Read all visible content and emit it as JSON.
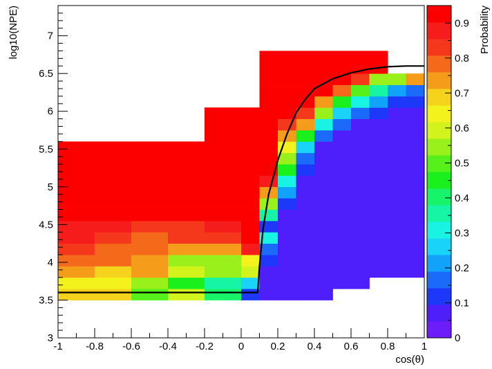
{
  "chart_data": {
    "type": "heatmap",
    "xlabel": "cos(θ)",
    "ylabel": "log10(NPE)",
    "colorbar_label": "Probability",
    "xlim": [
      -1,
      1
    ],
    "ylim": [
      3,
      7.4
    ],
    "zlim": [
      0,
      0.95
    ],
    "grid": false,
    "x_ticks": [
      "-1",
      "-0.8",
      "-0.6",
      "-0.4",
      "-0.2",
      "0",
      "0.2",
      "0.4",
      "0.6",
      "0.8",
      "1"
    ],
    "y_ticks": [
      "3",
      "3.5",
      "4",
      "4.5",
      "5",
      "5.5",
      "6",
      "6.5",
      "7"
    ],
    "colorbar_ticks": [
      "0",
      "0.1",
      "0.2",
      "0.3",
      "0.4",
      "0.5",
      "0.6",
      "0.7",
      "0.8",
      "0.9"
    ],
    "bin_edges_x": [
      -1.0,
      -0.8,
      -0.6,
      -0.4,
      -0.2,
      0.0,
      0.1,
      0.2,
      0.3,
      0.4,
      0.5,
      0.6,
      0.7,
      0.8,
      0.9,
      1.0
    ],
    "bin_edges_y": [
      3.5,
      3.65,
      3.8,
      3.95,
      4.1,
      4.25,
      4.4,
      4.55,
      4.7,
      4.85,
      5.0,
      5.15,
      5.3,
      5.45,
      5.6,
      5.75,
      5.9,
      6.05,
      6.2,
      6.35,
      6.5,
      6.65,
      6.8
    ],
    "z": [
      [
        0.7,
        0.7,
        0.5,
        0.6,
        0.4,
        0.1,
        0.05,
        0.05,
        0.05,
        0.05,
        null,
        null,
        null,
        null,
        null
      ],
      [
        0.65,
        0.65,
        0.55,
        0.45,
        0.35,
        0.25,
        0.05,
        0.05,
        0.05,
        0.05,
        0.05,
        0.05,
        null,
        null,
        null
      ],
      [
        0.75,
        0.7,
        0.75,
        0.6,
        0.55,
        0.6,
        0.05,
        0.05,
        0.05,
        0.05,
        0.05,
        0.05,
        0.05,
        0.05,
        0.05
      ],
      [
        0.8,
        0.8,
        0.75,
        0.55,
        0.55,
        0.65,
        0.1,
        0.05,
        0.05,
        0.05,
        0.05,
        0.05,
        0.05,
        0.05,
        0.05
      ],
      [
        0.85,
        0.8,
        0.8,
        0.72,
        0.72,
        0.9,
        0.15,
        0.05,
        0.05,
        0.05,
        0.05,
        0.05,
        0.05,
        0.05,
        0.05
      ],
      [
        0.88,
        0.85,
        0.8,
        0.82,
        0.85,
        0.92,
        0.3,
        0.05,
        0.05,
        0.05,
        0.05,
        0.05,
        0.05,
        0.05,
        0.05
      ],
      [
        0.88,
        0.88,
        0.82,
        0.85,
        0.88,
        0.95,
        0.12,
        0.05,
        0.05,
        0.05,
        0.05,
        0.05,
        0.05,
        0.05,
        0.05
      ],
      [
        0.95,
        0.95,
        0.95,
        0.95,
        0.95,
        0.95,
        0.35,
        0.08,
        0.05,
        0.05,
        0.05,
        0.05,
        0.05,
        0.05,
        0.05
      ],
      [
        0.95,
        0.95,
        0.95,
        0.95,
        0.95,
        0.95,
        0.55,
        0.12,
        0.05,
        0.05,
        0.05,
        0.05,
        0.05,
        0.05,
        0.05
      ],
      [
        0.95,
        0.95,
        0.95,
        0.95,
        0.95,
        0.95,
        0.75,
        0.2,
        0.05,
        0.05,
        0.05,
        0.05,
        0.05,
        0.05,
        0.05
      ],
      [
        0.95,
        0.95,
        0.95,
        0.95,
        0.95,
        0.95,
        0.88,
        0.3,
        0.08,
        0.05,
        0.05,
        0.05,
        0.05,
        0.05,
        0.05
      ],
      [
        0.95,
        0.95,
        0.95,
        0.95,
        0.95,
        0.95,
        0.92,
        0.45,
        0.12,
        0.05,
        0.05,
        0.05,
        0.05,
        0.05,
        0.05
      ],
      [
        0.95,
        0.95,
        0.95,
        0.95,
        0.95,
        0.95,
        0.95,
        0.55,
        0.18,
        0.05,
        0.05,
        0.05,
        0.05,
        0.05,
        0.05
      ],
      [
        0.95,
        0.95,
        0.95,
        0.95,
        0.95,
        0.95,
        0.95,
        0.65,
        0.25,
        0.08,
        0.05,
        0.05,
        0.05,
        0.05,
        0.05
      ],
      [
        null,
        null,
        null,
        null,
        0.95,
        0.95,
        0.95,
        0.72,
        0.45,
        0.18,
        0.08,
        0.05,
        0.05,
        0.05,
        0.05
      ],
      [
        null,
        null,
        null,
        null,
        0.95,
        0.95,
        0.95,
        0.85,
        0.72,
        0.32,
        0.15,
        0.08,
        0.05,
        0.05,
        0.05
      ],
      [
        null,
        null,
        null,
        null,
        0.95,
        0.95,
        0.95,
        0.95,
        0.85,
        0.55,
        0.25,
        0.15,
        0.12,
        0.08,
        0.05
      ],
      [
        null,
        null,
        null,
        null,
        null,
        null,
        0.95,
        0.95,
        0.95,
        0.72,
        0.45,
        0.32,
        0.2,
        0.12,
        0.1
      ],
      [
        null,
        null,
        null,
        null,
        null,
        null,
        0.95,
        0.95,
        0.95,
        0.92,
        0.78,
        0.52,
        0.35,
        0.2,
        0.18
      ],
      [
        null,
        null,
        null,
        null,
        null,
        null,
        0.95,
        0.95,
        0.95,
        0.95,
        0.92,
        0.85,
        0.55,
        0.55,
        0.72
      ],
      [
        null,
        null,
        null,
        null,
        null,
        null,
        0.95,
        0.95,
        0.95,
        0.95,
        0.95,
        0.95,
        0.95,
        null,
        null
      ],
      [
        null,
        null,
        null,
        null,
        null,
        null,
        0.95,
        0.95,
        0.95,
        0.95,
        0.95,
        0.95,
        0.95,
        null,
        null
      ]
    ],
    "z_overrides_note_free": true,
    "cut_curve": [
      [
        -1.0,
        3.6
      ],
      [
        0.0,
        3.6
      ],
      [
        0.09,
        3.6
      ],
      [
        0.1,
        3.95
      ],
      [
        0.12,
        4.45
      ],
      [
        0.15,
        4.9
      ],
      [
        0.2,
        5.35
      ],
      [
        0.25,
        5.7
      ],
      [
        0.3,
        5.98
      ],
      [
        0.35,
        6.16
      ],
      [
        0.4,
        6.3
      ],
      [
        0.5,
        6.43
      ],
      [
        0.6,
        6.51
      ],
      [
        0.7,
        6.56
      ],
      [
        0.8,
        6.59
      ],
      [
        0.9,
        6.6
      ],
      [
        1.0,
        6.6
      ]
    ]
  }
}
